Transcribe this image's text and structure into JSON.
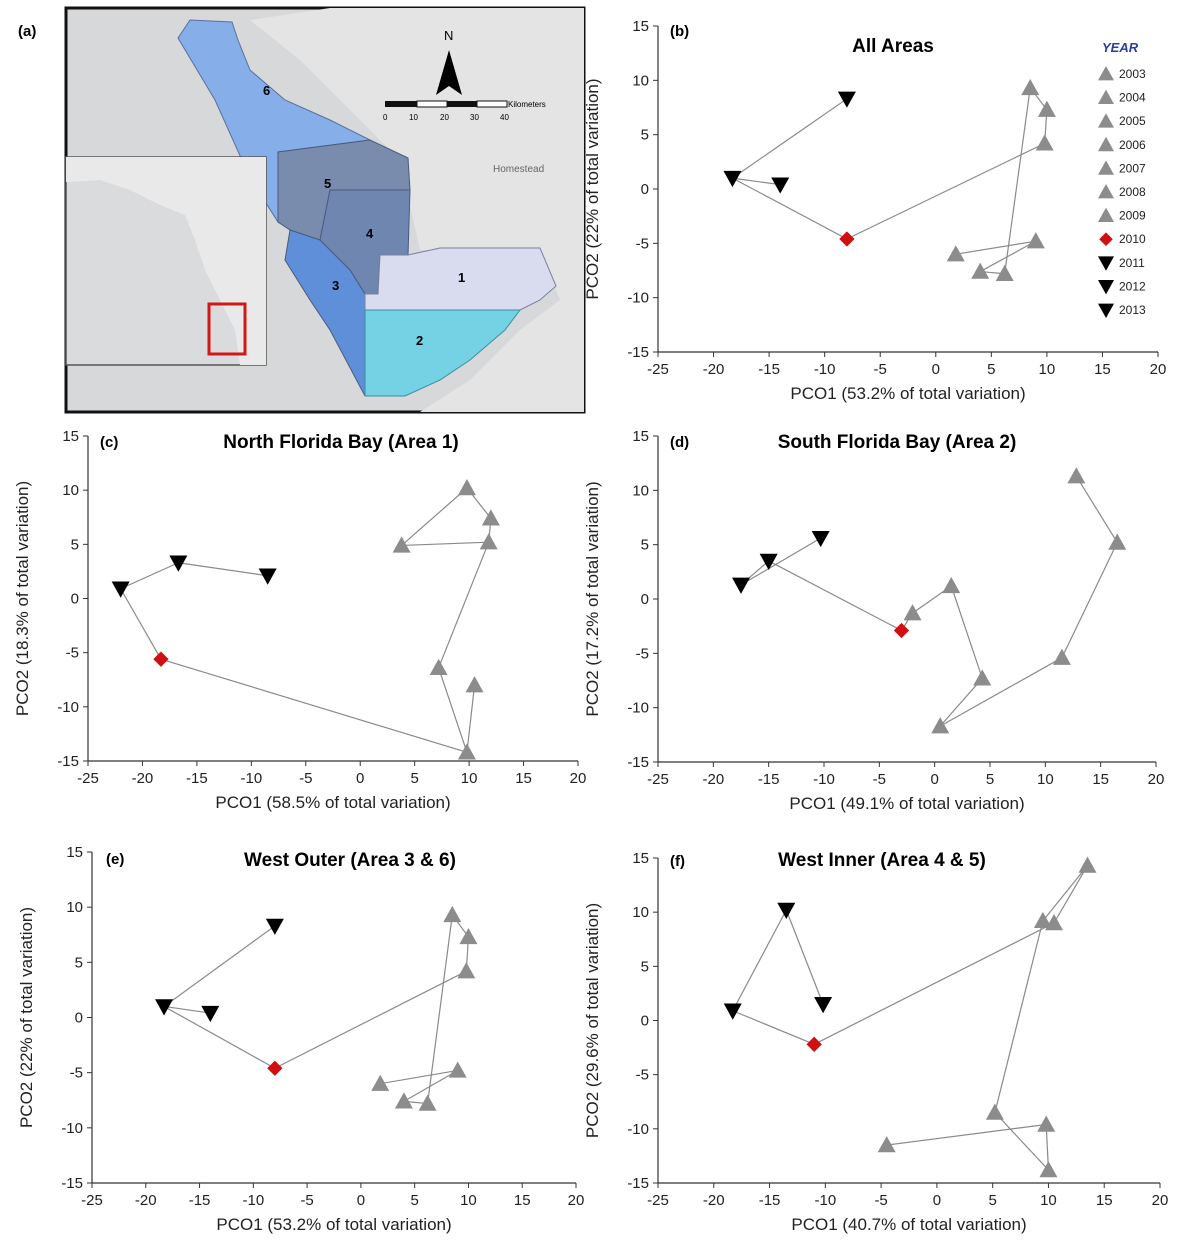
{
  "panel_labels": [
    "(a)",
    "(b)",
    "(c)",
    "(d)",
    "(e)",
    "(f)"
  ],
  "map": {
    "north_label": "N",
    "scale_unit": "Kilometers",
    "scale_ticks": [
      "0",
      "10",
      "20",
      "30",
      "40"
    ],
    "place_label": "Homestead",
    "area_labels": [
      "1",
      "2",
      "3",
      "4",
      "5",
      "6"
    ],
    "area_colors": {
      "1": "#d9dcef",
      "2": "#74d2e4",
      "3": "#5e8fd8",
      "4": "#6f86b0",
      "5": "#7a8cae",
      "6": "#86aee8"
    }
  },
  "legend": {
    "title": "YEAR",
    "entries": [
      {
        "year": "2003",
        "marker": "triangle-up",
        "color": "#8c8c8c"
      },
      {
        "year": "2004",
        "marker": "triangle-up",
        "color": "#8c8c8c"
      },
      {
        "year": "2005",
        "marker": "triangle-up",
        "color": "#8c8c8c"
      },
      {
        "year": "2006",
        "marker": "triangle-up",
        "color": "#8c8c8c"
      },
      {
        "year": "2007",
        "marker": "triangle-up",
        "color": "#8c8c8c"
      },
      {
        "year": "2008",
        "marker": "triangle-up",
        "color": "#8c8c8c"
      },
      {
        "year": "2009",
        "marker": "triangle-up",
        "color": "#8c8c8c"
      },
      {
        "year": "2010",
        "marker": "diamond",
        "color": "#d01010"
      },
      {
        "year": "2011",
        "marker": "triangle-down",
        "color": "#000000"
      },
      {
        "year": "2012",
        "marker": "triangle-down",
        "color": "#000000"
      },
      {
        "year": "2013",
        "marker": "triangle-down",
        "color": "#000000"
      }
    ]
  },
  "chart_data": [
    {
      "panel": "(b)",
      "type": "scatter",
      "title": "All Areas",
      "xlabel": "PCO1 (53.2% of total variation)",
      "ylabel": "PCO2 (22% of total variation)",
      "xlim": [
        -25,
        20
      ],
      "ylim": [
        -15,
        15
      ],
      "xticks": [
        -25,
        -20,
        -15,
        -10,
        -5,
        0,
        5,
        10,
        15,
        20
      ],
      "yticks": [
        -15,
        -10,
        -5,
        0,
        5,
        10,
        15
      ],
      "points": [
        {
          "year": "2003",
          "x": 8.5,
          "y": 9.3
        },
        {
          "year": "2004",
          "x": 10,
          "y": 7.3
        },
        {
          "year": "2005",
          "x": 9.8,
          "y": 4.2
        },
        {
          "year": "2006",
          "x": 6.2,
          "y": -7.8
        },
        {
          "year": "2007",
          "x": 4,
          "y": -7.6
        },
        {
          "year": "2008",
          "x": 9,
          "y": -4.8
        },
        {
          "year": "2009",
          "x": 1.8,
          "y": -6
        },
        {
          "year": "2010",
          "x": -8,
          "y": -4.6
        },
        {
          "year": "2011",
          "x": -18.3,
          "y": 1
        },
        {
          "year": "2012",
          "x": -14,
          "y": 0.4
        },
        {
          "year": "2013",
          "x": -8,
          "y": 8.3
        }
      ],
      "path": [
        [
          "2003",
          "2004"
        ],
        [
          "2004",
          "2005"
        ],
        [
          "2003",
          "2006"
        ],
        [
          "2006",
          "2007"
        ],
        [
          "2007",
          "2008"
        ],
        [
          "2008",
          "2009"
        ],
        [
          "2005",
          "2010"
        ],
        [
          "2010",
          "2011"
        ],
        [
          "2011",
          "2012"
        ],
        [
          "2011",
          "2013"
        ]
      ]
    },
    {
      "panel": "(c)",
      "type": "scatter",
      "title": "North Florida Bay (Area 1)",
      "xlabel": "PCO1 (58.5% of total variation)",
      "ylabel": "PCO2 (18.3% of total variation)",
      "xlim": [
        -25,
        20
      ],
      "ylim": [
        -15,
        15
      ],
      "xticks": [
        -25,
        -20,
        -15,
        -10,
        -5,
        0,
        5,
        10,
        15,
        20
      ],
      "yticks": [
        -15,
        -10,
        -5,
        0,
        5,
        10,
        15
      ],
      "points": [
        {
          "year": "2003",
          "x": 9.8,
          "y": 10.2
        },
        {
          "year": "2004",
          "x": 12,
          "y": 7.4
        },
        {
          "year": "2005",
          "x": 3.8,
          "y": 4.9
        },
        {
          "year": "2006",
          "x": 11.8,
          "y": 5.2
        },
        {
          "year": "2007",
          "x": 7.2,
          "y": -6.4
        },
        {
          "year": "2008",
          "x": 10.5,
          "y": -8
        },
        {
          "year": "2009",
          "x": 9.8,
          "y": -14.2
        },
        {
          "year": "2010",
          "x": -18.3,
          "y": -5.6
        },
        {
          "year": "2011",
          "x": -22,
          "y": 0.9
        },
        {
          "year": "2012",
          "x": -16.7,
          "y": 3.3
        },
        {
          "year": "2013",
          "x": -8.5,
          "y": 2.1
        }
      ],
      "path": [
        [
          "2003",
          "2004"
        ],
        [
          "2004",
          "2006"
        ],
        [
          "2006",
          "2005"
        ],
        [
          "2005",
          "2003"
        ],
        [
          "2006",
          "2007"
        ],
        [
          "2007",
          "2009"
        ],
        [
          "2009",
          "2008"
        ],
        [
          "2009",
          "2010"
        ],
        [
          "2010",
          "2011"
        ],
        [
          "2011",
          "2012"
        ],
        [
          "2012",
          "2013"
        ]
      ]
    },
    {
      "panel": "(d)",
      "type": "scatter",
      "title": "South Florida Bay (Area 2)",
      "xlabel": "PCO1 (49.1% of total variation)",
      "ylabel": "PCO2 (17.2% of total variation)",
      "xlim": [
        -25,
        20
      ],
      "ylim": [
        -15,
        15
      ],
      "xticks": [
        -25,
        -20,
        -15,
        -10,
        -5,
        0,
        5,
        10,
        15,
        20
      ],
      "yticks": [
        -15,
        -10,
        -5,
        0,
        5,
        10,
        15
      ],
      "points": [
        {
          "year": "2003",
          "x": 12.8,
          "y": 11.3
        },
        {
          "year": "2004",
          "x": 16.5,
          "y": 5.2
        },
        {
          "year": "2005",
          "x": 11.5,
          "y": -5.4
        },
        {
          "year": "2006",
          "x": 0.5,
          "y": -11.7
        },
        {
          "year": "2007",
          "x": 4.3,
          "y": -7.3
        },
        {
          "year": "2008",
          "x": 1.5,
          "y": 1.2
        },
        {
          "year": "2009",
          "x": -2,
          "y": -1.3
        },
        {
          "year": "2010",
          "x": -3,
          "y": -2.9
        },
        {
          "year": "2011",
          "x": -17.5,
          "y": 1.3
        },
        {
          "year": "2012",
          "x": -15,
          "y": 3.5
        },
        {
          "year": "2013",
          "x": -10.3,
          "y": 5.6
        }
      ],
      "path": [
        [
          "2003",
          "2004"
        ],
        [
          "2004",
          "2005"
        ],
        [
          "2005",
          "2006"
        ],
        [
          "2006",
          "2007"
        ],
        [
          "2007",
          "2008"
        ],
        [
          "2008",
          "2009"
        ],
        [
          "2009",
          "2010"
        ],
        [
          "2010",
          "2012"
        ],
        [
          "2012",
          "2011"
        ],
        [
          "2011",
          "2013"
        ]
      ]
    },
    {
      "panel": "(e)",
      "type": "scatter",
      "title": "West Outer (Area 3 & 6)",
      "xlabel": "PCO1 (53.2% of total variation)",
      "ylabel": "PCO2 (22% of total variation)",
      "xlim": [
        -25,
        20
      ],
      "ylim": [
        -15,
        15
      ],
      "xticks": [
        -25,
        -20,
        -15,
        -10,
        -5,
        0,
        5,
        10,
        15,
        20
      ],
      "yticks": [
        -15,
        -10,
        -5,
        0,
        5,
        10,
        15
      ],
      "points": [
        {
          "year": "2003",
          "x": 8.5,
          "y": 9.3
        },
        {
          "year": "2004",
          "x": 10,
          "y": 7.3
        },
        {
          "year": "2005",
          "x": 9.8,
          "y": 4.2
        },
        {
          "year": "2006",
          "x": 6.2,
          "y": -7.8
        },
        {
          "year": "2007",
          "x": 4,
          "y": -7.6
        },
        {
          "year": "2008",
          "x": 9,
          "y": -4.8
        },
        {
          "year": "2009",
          "x": 1.8,
          "y": -6
        },
        {
          "year": "2010",
          "x": -8,
          "y": -4.6
        },
        {
          "year": "2011",
          "x": -18.3,
          "y": 1
        },
        {
          "year": "2012",
          "x": -14,
          "y": 0.4
        },
        {
          "year": "2013",
          "x": -8,
          "y": 8.3
        }
      ],
      "path": [
        [
          "2003",
          "2004"
        ],
        [
          "2004",
          "2005"
        ],
        [
          "2003",
          "2006"
        ],
        [
          "2006",
          "2007"
        ],
        [
          "2007",
          "2008"
        ],
        [
          "2008",
          "2009"
        ],
        [
          "2005",
          "2010"
        ],
        [
          "2010",
          "2011"
        ],
        [
          "2011",
          "2012"
        ],
        [
          "2011",
          "2013"
        ]
      ]
    },
    {
      "panel": "(f)",
      "type": "scatter",
      "title": "West Inner (Area 4 & 5)",
      "xlabel": "PCO1 (40.7% of total variation)",
      "ylabel": "PCO2 (29.6% of total variation)",
      "xlim": [
        -25,
        20
      ],
      "ylim": [
        -15,
        15
      ],
      "xticks": [
        -25,
        -20,
        -15,
        -10,
        -5,
        0,
        5,
        10,
        15,
        20
      ],
      "yticks": [
        -15,
        -10,
        -5,
        0,
        5,
        10,
        15
      ],
      "points": [
        {
          "year": "2003",
          "x": 13.5,
          "y": 14.3
        },
        {
          "year": "2004",
          "x": 9.5,
          "y": 9.2
        },
        {
          "year": "2005",
          "x": 10.5,
          "y": 9
        },
        {
          "year": "2006",
          "x": 5.2,
          "y": -8.5
        },
        {
          "year": "2007",
          "x": 9.8,
          "y": -9.6
        },
        {
          "year": "2008",
          "x": 10,
          "y": -13.8
        },
        {
          "year": "2009",
          "x": -4.5,
          "y": -11.5
        },
        {
          "year": "2010",
          "x": -11,
          "y": -2.2
        },
        {
          "year": "2011",
          "x": -18.3,
          "y": 0.9
        },
        {
          "year": "2012",
          "x": -13.5,
          "y": 10.2
        },
        {
          "year": "2013",
          "x": -10.2,
          "y": 1.5
        }
      ],
      "path": [
        [
          "2003",
          "2004"
        ],
        [
          "2003",
          "2005"
        ],
        [
          "2004",
          "2006"
        ],
        [
          "2006",
          "2008"
        ],
        [
          "2008",
          "2007"
        ],
        [
          "2007",
          "2009"
        ],
        [
          "2005",
          "2010"
        ],
        [
          "2010",
          "2011"
        ],
        [
          "2011",
          "2012"
        ],
        [
          "2012",
          "2013"
        ]
      ]
    }
  ]
}
